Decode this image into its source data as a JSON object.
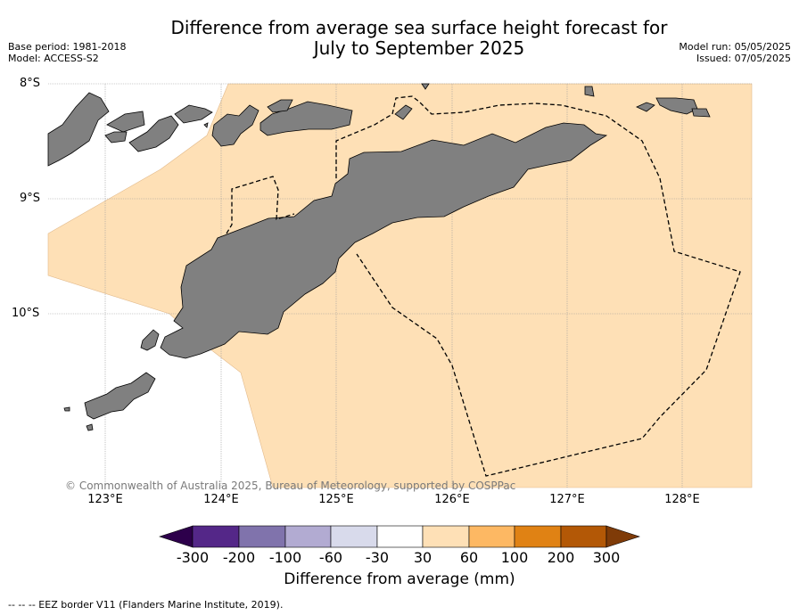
{
  "title_line1": "Difference from average sea surface height forecast for",
  "title_line2": "July to September 2025",
  "base_period": "Base period: 1981-2018",
  "model": "Model: ACCESS-S2",
  "model_run": "Model run: 05/05/2025",
  "issued": "Issued: 07/05/2025",
  "lat_labels": [
    "8°S",
    "9°S",
    "10°S"
  ],
  "lon_labels": [
    "123°E",
    "124°E",
    "125°E",
    "126°E",
    "127°E",
    "128°E"
  ],
  "copyright": "© Commonwealth of Australia 2025, Bureau of Meteorology, supported by COSPPac",
  "colorbar": {
    "ticks": [
      "-300",
      "-200",
      "-100",
      "-60",
      "-30",
      "30",
      "60",
      "100",
      "200",
      "300"
    ],
    "colors": [
      "#2d004b",
      "#542788",
      "#8073ac",
      "#b2abd2",
      "#d8daeb",
      "#ffffff",
      "#fee0b6",
      "#fdb863",
      "#e08214",
      "#b35806",
      "#7f3b08"
    ],
    "title": "Difference from average (mm)"
  },
  "forecast_category": "30 to 60 mm",
  "eez_note": "--  --  -- EEZ border V11 (Flanders Marine Institute, 2019).",
  "colors": {
    "fill": "#fee0b6",
    "land": "#808080",
    "grid": "#9a9a9a"
  }
}
